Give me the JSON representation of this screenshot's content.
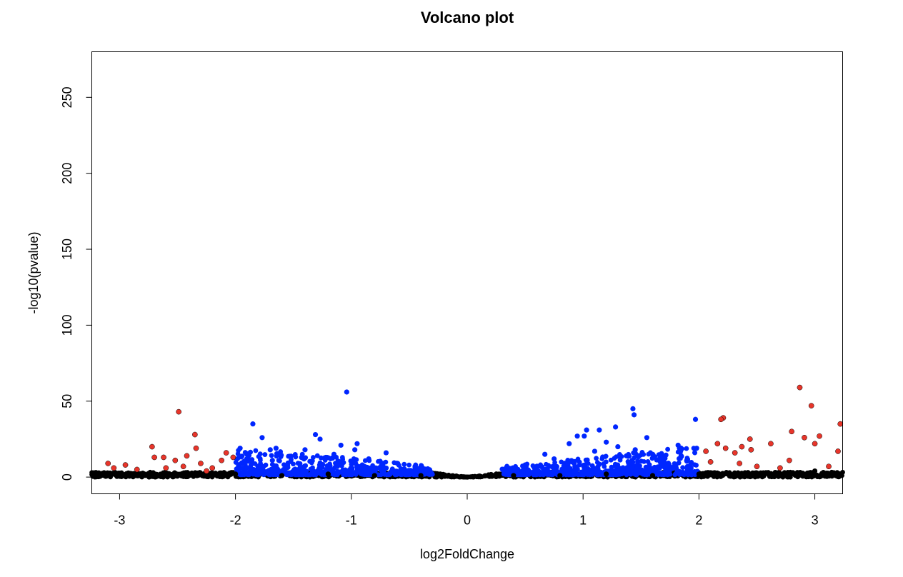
{
  "chart_data": {
    "type": "scatter",
    "title": "Volcano plot",
    "xlabel": "log2FoldChange",
    "ylabel": "-log10(pvalue)",
    "xlim": [
      -3.24,
      3.24
    ],
    "ylim": [
      -11,
      280
    ],
    "x_ticks": [
      -3,
      -2,
      -1,
      0,
      1,
      2,
      3
    ],
    "y_ticks": [
      0,
      50,
      100,
      150,
      200,
      250
    ],
    "grid": false,
    "legend": "none",
    "colors": {
      "not_significant": "#000000",
      "significant_pvalue": "#0026ff",
      "significant_pvalue_and_fc": "#e8352a",
      "point_outline": "#000000"
    },
    "series": [
      {
        "color_key": "significant_pvalue_and_fc",
        "points": [
          [
            -2.49,
            43
          ],
          [
            -2.35,
            28
          ],
          [
            -2.72,
            20
          ],
          [
            -2.34,
            19
          ],
          [
            -2.08,
            16
          ],
          [
            -2.02,
            13
          ],
          [
            -3.1,
            9
          ],
          [
            -3.05,
            6
          ],
          [
            -2.95,
            8
          ],
          [
            -2.85,
            5
          ],
          [
            -2.7,
            13
          ],
          [
            -2.62,
            13
          ],
          [
            -2.52,
            11
          ],
          [
            -2.42,
            14
          ],
          [
            -2.3,
            9
          ],
          [
            -2.2,
            6
          ],
          [
            -2.12,
            11
          ],
          [
            -2.25,
            4
          ],
          [
            -2.6,
            6
          ],
          [
            -2.45,
            7
          ],
          [
            2.87,
            59
          ],
          [
            2.97,
            47
          ],
          [
            2.21,
            39
          ],
          [
            2.19,
            38
          ],
          [
            2.8,
            30
          ],
          [
            2.91,
            26
          ],
          [
            3.04,
            27
          ],
          [
            2.44,
            25
          ],
          [
            2.16,
            22
          ],
          [
            2.62,
            22
          ],
          [
            3.0,
            22
          ],
          [
            2.23,
            19
          ],
          [
            2.31,
            16
          ],
          [
            2.37,
            20
          ],
          [
            3.22,
            35
          ],
          [
            3.2,
            17
          ],
          [
            2.45,
            18
          ],
          [
            2.06,
            17
          ],
          [
            2.1,
            10
          ],
          [
            2.35,
            9
          ],
          [
            2.5,
            7
          ],
          [
            2.7,
            6
          ],
          [
            3.12,
            7
          ],
          [
            2.78,
            11
          ]
        ]
      },
      {
        "color_key": "significant_pvalue",
        "points": [
          [
            -1.04,
            56
          ],
          [
            -1.85,
            35
          ],
          [
            -1.77,
            26
          ],
          [
            -1.31,
            28
          ],
          [
            -1.27,
            25
          ],
          [
            -1.09,
            21
          ],
          [
            -0.95,
            22
          ],
          [
            -0.97,
            18
          ],
          [
            -1.65,
            19
          ],
          [
            -1.7,
            18
          ],
          [
            -1.15,
            15
          ],
          [
            -1.4,
            18
          ],
          [
            -0.7,
            16
          ],
          [
            -1.22,
            13
          ],
          [
            -1.96,
            19
          ],
          [
            -1.87,
            11
          ],
          [
            -1.55,
            8
          ],
          [
            -0.85,
            12
          ],
          [
            -0.6,
            9
          ],
          [
            -0.45,
            7
          ],
          [
            1.43,
            45
          ],
          [
            1.44,
            41
          ],
          [
            1.97,
            38
          ],
          [
            1.28,
            33
          ],
          [
            1.03,
            31
          ],
          [
            1.14,
            31
          ],
          [
            1.01,
            27
          ],
          [
            0.95,
            27
          ],
          [
            1.2,
            23
          ],
          [
            1.55,
            26
          ],
          [
            1.3,
            20
          ],
          [
            1.45,
            18
          ],
          [
            1.82,
            21
          ],
          [
            1.98,
            19
          ],
          [
            0.88,
            22
          ],
          [
            1.7,
            14
          ],
          [
            1.1,
            17
          ],
          [
            0.67,
            15
          ],
          [
            0.5,
            8
          ],
          [
            0.75,
            12
          ],
          [
            1.6,
            15
          ],
          [
            1.9,
            11
          ]
        ]
      },
      {
        "color_key": "not_significant",
        "points": [
          [
            -3.2,
            1
          ],
          [
            -2.8,
            2
          ],
          [
            -2.4,
            1
          ],
          [
            -2.0,
            2
          ],
          [
            -1.6,
            1
          ],
          [
            -1.2,
            2
          ],
          [
            -0.8,
            1
          ],
          [
            -0.4,
            1
          ],
          [
            0,
            0
          ],
          [
            0.4,
            1
          ],
          [
            0.8,
            1
          ],
          [
            1.2,
            2
          ],
          [
            1.6,
            1
          ],
          [
            2.0,
            2
          ],
          [
            2.4,
            1
          ],
          [
            2.8,
            2
          ],
          [
            3.2,
            1
          ],
          [
            3.0,
            4
          ]
        ]
      }
    ]
  }
}
